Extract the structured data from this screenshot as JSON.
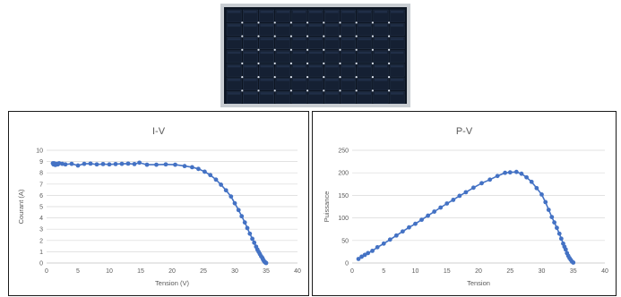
{
  "photo": {
    "subject": "solar-panel-photo",
    "frame_color": "#c9cdd2",
    "cell_color": "#152033"
  },
  "chart_data": [
    {
      "type": "scatter",
      "title": "I-V",
      "xlabel": "Tension (V)",
      "ylabel": "Courant (A)",
      "xlim": [
        0,
        40
      ],
      "ylim": [
        0,
        10
      ],
      "xticks": [
        0,
        5,
        10,
        15,
        20,
        25,
        30,
        35,
        40
      ],
      "yticks": [
        0,
        1,
        2,
        3,
        4,
        5,
        6,
        7,
        8,
        9,
        10
      ],
      "grid": true,
      "color": "#4472c4",
      "series": [
        {
          "x": [
            1.0,
            1.1,
            1.2,
            1.4,
            1.6,
            1.8,
            2.0,
            2.5,
            3.0,
            4.0,
            5.0,
            6.0,
            7.0,
            8.0,
            9.0,
            10.0,
            11.0,
            12.0,
            13.0,
            14.0,
            14.8,
            16.0,
            17.5,
            19.0,
            20.5,
            22.0,
            23.2,
            24.2,
            25.2,
            26.1,
            27.0,
            27.8,
            28.6,
            29.4,
            30.0,
            30.6,
            31.1,
            31.6,
            32.0,
            32.4,
            32.8,
            33.1,
            33.4,
            33.6,
            33.8,
            34.0,
            34.2,
            34.4,
            34.5,
            34.6,
            34.7,
            34.8,
            34.9,
            35.0
          ],
          "y": [
            8.85,
            8.75,
            8.85,
            8.7,
            8.8,
            8.75,
            8.85,
            8.8,
            8.75,
            8.8,
            8.65,
            8.8,
            8.82,
            8.75,
            8.78,
            8.75,
            8.78,
            8.8,
            8.82,
            8.78,
            8.9,
            8.72,
            8.72,
            8.75,
            8.72,
            8.6,
            8.5,
            8.35,
            8.1,
            7.8,
            7.4,
            6.95,
            6.45,
            5.9,
            5.3,
            4.7,
            4.15,
            3.6,
            3.1,
            2.6,
            2.15,
            1.8,
            1.45,
            1.2,
            1.0,
            0.8,
            0.6,
            0.45,
            0.32,
            0.22,
            0.14,
            0.08,
            0.04,
            0.0
          ]
        }
      ]
    },
    {
      "type": "scatter",
      "title": "P-V",
      "xlabel": "Tension",
      "ylabel": "Puissance",
      "xlim": [
        0,
        40
      ],
      "ylim": [
        0,
        250
      ],
      "xticks": [
        0,
        5,
        10,
        15,
        20,
        25,
        30,
        35,
        40
      ],
      "yticks": [
        0,
        50,
        100,
        150,
        200,
        250
      ],
      "grid": true,
      "color": "#4472c4",
      "series": [
        {
          "x": [
            1.0,
            1.5,
            2.0,
            2.5,
            3.2,
            4.0,
            5.0,
            6.0,
            7.0,
            8.0,
            9.0,
            10.0,
            11.0,
            12.0,
            13.0,
            14.0,
            15.0,
            16.0,
            17.0,
            18.0,
            19.2,
            20.5,
            21.8,
            23.0,
            24.2,
            25.0,
            26.0,
            26.8,
            27.6,
            28.4,
            29.2,
            30.0,
            30.6,
            31.1,
            31.6,
            32.0,
            32.4,
            32.8,
            33.1,
            33.4,
            33.6,
            33.8,
            34.0,
            34.2,
            34.4,
            34.6,
            34.8,
            35.0
          ],
          "y": [
            9,
            14,
            18,
            22,
            27,
            35,
            43,
            52,
            61,
            70,
            79,
            87,
            96,
            105,
            114,
            123,
            132,
            140,
            149,
            157,
            167,
            177,
            185,
            193,
            200,
            201,
            202,
            198,
            190,
            180,
            166,
            152,
            135,
            118,
            102,
            90,
            78,
            65,
            54,
            43,
            36,
            30,
            22,
            16,
            11,
            7,
            3,
            1
          ]
        }
      ]
    }
  ]
}
